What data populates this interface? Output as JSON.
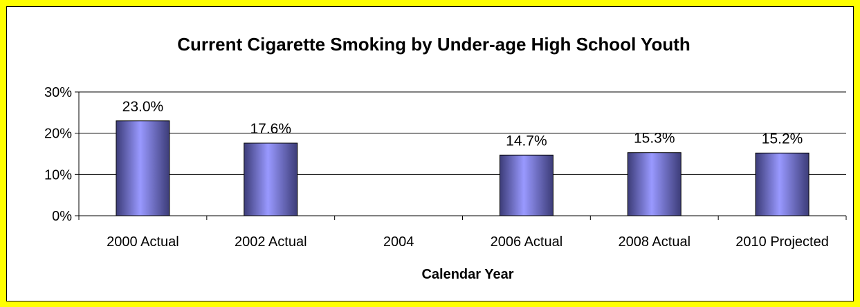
{
  "chart_data": {
    "type": "bar",
    "title": "Current Cigarette Smoking by Under-age High School Youth",
    "xlabel": "Calendar Year",
    "ylabel": "",
    "categories": [
      "2000 Actual",
      "2002 Actual",
      "2004",
      "2006 Actual",
      "2008 Actual",
      "2010 Projected"
    ],
    "values": [
      23.0,
      17.6,
      null,
      14.7,
      15.3,
      15.2
    ],
    "data_labels": [
      "23.0%",
      "17.6%",
      "",
      "14.7%",
      "15.3%",
      "15.2%"
    ],
    "ylim": [
      0,
      30
    ],
    "yticks": [
      0,
      10,
      20,
      30
    ],
    "ytick_labels": [
      "0%",
      "10%",
      "20%",
      "30%"
    ],
    "grid": true,
    "legend": "none",
    "colors": {
      "frame": "#ffff00",
      "bar_light": "#9999ff",
      "bar_dark": "#3c3c78",
      "grid": "#000000"
    }
  }
}
